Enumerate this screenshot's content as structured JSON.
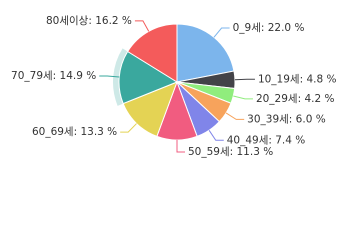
{
  "chart_data": {
    "type": "pie",
    "labels": [
      "0_9세: 22.0 %",
      "10_19세: 4.8 %",
      "20_29세: 4.2 %",
      "30_39세: 6.0 %",
      "40_49세: 7.4 %",
      "50_59세: 11.3 %",
      "60_69세: 13.3 %",
      "70_79세: 14.9 %",
      "80세이상: 16.2 %"
    ],
    "values": [
      22.0,
      4.8,
      4.2,
      6.0,
      7.4,
      11.3,
      13.3,
      14.9,
      16.2
    ],
    "colors": [
      "#7cb5ec",
      "#434348",
      "#90ed7d",
      "#f7a35c",
      "#8085e9",
      "#f15c80",
      "#e4d354",
      "#3aa89e",
      "#f45b5b"
    ]
  }
}
